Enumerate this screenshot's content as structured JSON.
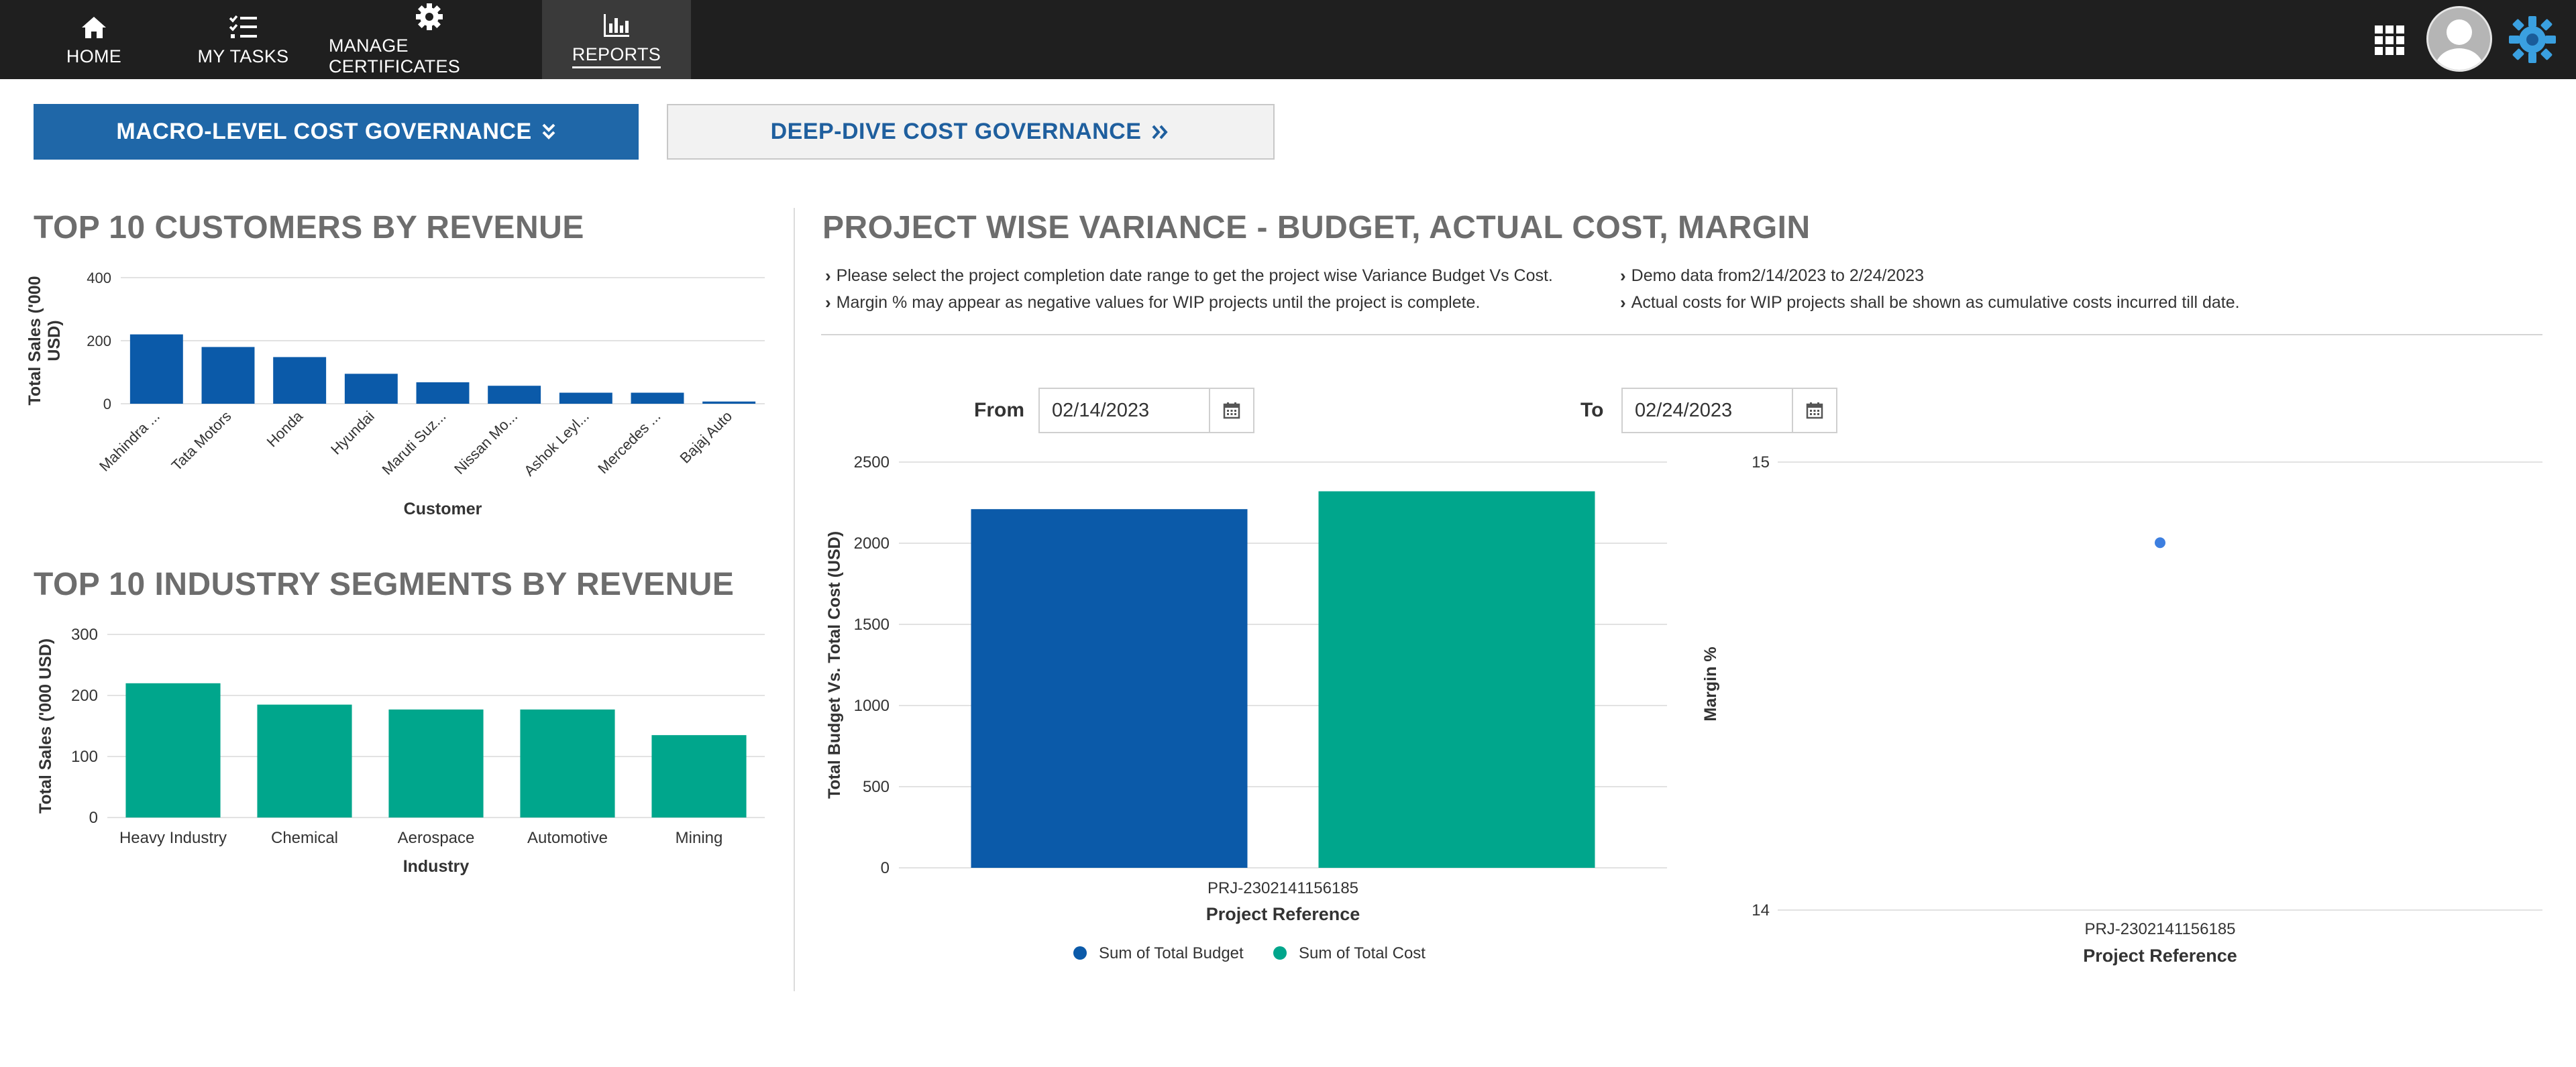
{
  "nav": {
    "items": [
      {
        "label": "HOME",
        "icon": "home-icon"
      },
      {
        "label": "MY TASKS",
        "icon": "task-list-icon"
      },
      {
        "label": "MANAGE CERTIFICATES",
        "icon": "gear-icon"
      },
      {
        "label": "REPORTS",
        "icon": "bar-chart-icon",
        "active": true
      }
    ],
    "right_icons": [
      "apps-grid-icon",
      "user-avatar",
      "company-logo"
    ]
  },
  "governance": {
    "macro_label": "MACRO-LEVEL COST GOVERNANCE",
    "deep_label": "DEEP-DIVE COST GOVERNANCE"
  },
  "colors": {
    "nav_bg": "#1f1f1f",
    "primary_blue": "#1f67a8",
    "budget_blue": "#0b5aa9",
    "cost_teal": "#00a68c",
    "margin_point": "#3d7fe0"
  },
  "customers": {
    "title": "TOP 10 CUSTOMERS BY REVENUE"
  },
  "industry": {
    "title": "TOP 10 INDUSTRY SEGMENTS BY REVENUE"
  },
  "variance": {
    "title": "PROJECT WISE VARIANCE - BUDGET, ACTUAL COST, MARGIN",
    "notes": [
      "Please select the project completion date range to get the project wise Variance Budget Vs Cost.",
      "Demo data from2/14/2023 to 2/24/2023",
      "Margin % may appear as negative values for WIP projects until the project is complete.",
      "Actual costs for WIP projects shall be shown as cumulative costs incurred till date."
    ],
    "from_label": "From",
    "from_value": "02/14/2023",
    "to_label": "To",
    "to_value": "02/24/2023"
  },
  "chart_data": [
    {
      "type": "bar",
      "categories": [
        "Mahindra ...",
        "Tata Motors",
        "Honda",
        "Hyundai",
        "Maruti Suz...",
        "Nissan Mo...",
        "Ashok Leyl...",
        "Mercedes ...",
        "Bajaj Auto"
      ],
      "values": [
        220,
        180,
        148,
        95,
        68,
        57,
        35,
        35,
        7
      ],
      "xlabel": "Customer",
      "ylabel": "Total Sales ('000 USD)",
      "ylim": [
        0,
        400
      ],
      "yticks": [
        0,
        200,
        400
      ],
      "grid": true
    },
    {
      "type": "bar",
      "categories": [
        "Heavy Industry",
        "Chemical",
        "Aerospace",
        "Automotive",
        "Mining"
      ],
      "values": [
        220,
        185,
        177,
        177,
        135
      ],
      "xlabel": "Industry",
      "ylabel": "Total Sales ('000 USD)",
      "ylim": [
        0,
        300
      ],
      "yticks": [
        0,
        100,
        200,
        300
      ],
      "grid": true
    },
    {
      "type": "bar",
      "categories": [
        "PRJ-2302141156185"
      ],
      "series": [
        {
          "name": "Sum of Total Budget",
          "values": [
            2210
          ]
        },
        {
          "name": "Sum of Total Cost",
          "values": [
            2320
          ]
        }
      ],
      "xlabel": "Project Reference",
      "ylabel": "Total Budget Vs. Total Cost (USD)",
      "ylim": [
        0,
        2500
      ],
      "yticks": [
        0,
        500,
        1000,
        1500,
        2000,
        2500
      ],
      "legend": "bottom",
      "grid": true
    },
    {
      "type": "scatter",
      "categories": [
        "PRJ-2302141156185"
      ],
      "values": [
        14.82
      ],
      "xlabel": "Project Reference",
      "ylabel": "Margin %",
      "ylim": [
        14,
        15
      ],
      "yticks": [
        14,
        15
      ],
      "grid": true
    }
  ]
}
